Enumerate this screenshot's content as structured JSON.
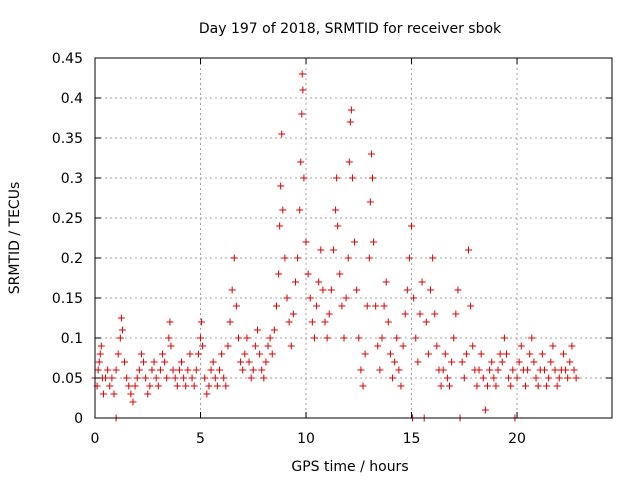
{
  "chart_data": {
    "type": "scatter",
    "title": "Day 197 of 2018, SRMTID for receiver sbok",
    "xlabel": "GPS time / hours",
    "ylabel": "SRMTID / TECUs",
    "xlim": [
      0,
      24.5
    ],
    "ylim": [
      0,
      0.45
    ],
    "x_ticks": [
      0,
      5,
      10,
      15,
      20
    ],
    "x_tick_labels": [
      "0",
      "5",
      "10",
      "15",
      "20"
    ],
    "y_ticks": [
      0,
      0.05,
      0.1,
      0.15,
      0.2,
      0.25,
      0.3,
      0.35,
      0.4,
      0.45
    ],
    "y_tick_labels": [
      "0",
      "0.05",
      "0.1",
      "0.15",
      "0.2",
      "0.25",
      "0.3",
      "0.35",
      "0.4",
      "0.45"
    ],
    "grid": true,
    "marker": "plus",
    "color": "#e00000",
    "series": [
      {
        "name": "SRMTID",
        "points": [
          [
            0.0,
            0.05
          ],
          [
            0.1,
            0.04
          ],
          [
            0.15,
            0.06
          ],
          [
            0.2,
            0.07
          ],
          [
            0.25,
            0.08
          ],
          [
            0.3,
            0.09
          ],
          [
            0.35,
            0.05
          ],
          [
            0.4,
            0.03
          ],
          [
            0.5,
            0.05
          ],
          [
            0.6,
            0.06
          ],
          [
            0.7,
            0.04
          ],
          [
            0.8,
            0.05
          ],
          [
            0.9,
            0.03
          ],
          [
            1.0,
            0.0
          ],
          [
            1.0,
            0.06
          ],
          [
            1.1,
            0.08
          ],
          [
            1.2,
            0.1
          ],
          [
            1.25,
            0.125
          ],
          [
            1.3,
            0.11
          ],
          [
            1.4,
            0.07
          ],
          [
            1.5,
            0.05
          ],
          [
            1.6,
            0.04
          ],
          [
            1.7,
            0.03
          ],
          [
            1.8,
            0.02
          ],
          [
            1.9,
            0.04
          ],
          [
            2.0,
            0.05
          ],
          [
            2.1,
            0.06
          ],
          [
            2.2,
            0.08
          ],
          [
            2.3,
            0.07
          ],
          [
            2.4,
            0.05
          ],
          [
            2.5,
            0.03
          ],
          [
            2.6,
            0.04
          ],
          [
            2.7,
            0.06
          ],
          [
            2.8,
            0.07
          ],
          [
            2.9,
            0.05
          ],
          [
            3.0,
            0.04
          ],
          [
            3.1,
            0.06
          ],
          [
            3.2,
            0.08
          ],
          [
            3.3,
            0.07
          ],
          [
            3.4,
            0.05
          ],
          [
            3.5,
            0.1
          ],
          [
            3.55,
            0.12
          ],
          [
            3.6,
            0.09
          ],
          [
            3.7,
            0.06
          ],
          [
            3.8,
            0.05
          ],
          [
            3.9,
            0.04
          ],
          [
            4.0,
            0.06
          ],
          [
            4.1,
            0.07
          ],
          [
            4.2,
            0.05
          ],
          [
            4.3,
            0.04
          ],
          [
            4.4,
            0.06
          ],
          [
            4.5,
            0.08
          ],
          [
            4.6,
            0.05
          ],
          [
            4.7,
            0.04
          ],
          [
            4.8,
            0.06
          ],
          [
            4.9,
            0.08
          ],
          [
            5.0,
            0.1
          ],
          [
            5.05,
            0.12
          ],
          [
            5.1,
            0.09
          ],
          [
            5.2,
            0.05
          ],
          [
            5.3,
            0.03
          ],
          [
            5.4,
            0.04
          ],
          [
            5.5,
            0.06
          ],
          [
            5.6,
            0.07
          ],
          [
            5.7,
            0.05
          ],
          [
            5.8,
            0.04
          ],
          [
            5.9,
            0.06
          ],
          [
            6.0,
            0.08
          ],
          [
            6.1,
            0.05
          ],
          [
            6.2,
            0.04
          ],
          [
            6.3,
            0.09
          ],
          [
            6.4,
            0.12
          ],
          [
            6.5,
            0.16
          ],
          [
            6.6,
            0.2
          ],
          [
            6.7,
            0.14
          ],
          [
            6.8,
            0.1
          ],
          [
            6.9,
            0.07
          ],
          [
            7.0,
            0.06
          ],
          [
            7.1,
            0.08
          ],
          [
            7.2,
            0.1
          ],
          [
            7.3,
            0.07
          ],
          [
            7.4,
            0.05
          ],
          [
            7.5,
            0.06
          ],
          [
            7.6,
            0.09
          ],
          [
            7.7,
            0.11
          ],
          [
            7.8,
            0.08
          ],
          [
            7.9,
            0.06
          ],
          [
            8.0,
            0.05
          ],
          [
            8.1,
            0.07
          ],
          [
            8.2,
            0.09
          ],
          [
            8.3,
            0.1
          ],
          [
            8.4,
            0.08
          ],
          [
            8.5,
            0.11
          ],
          [
            8.6,
            0.14
          ],
          [
            8.7,
            0.18
          ],
          [
            8.75,
            0.24
          ],
          [
            8.8,
            0.29
          ],
          [
            8.85,
            0.355
          ],
          [
            8.9,
            0.26
          ],
          [
            9.0,
            0.2
          ],
          [
            9.1,
            0.15
          ],
          [
            9.2,
            0.12
          ],
          [
            9.3,
            0.09
          ],
          [
            9.4,
            0.13
          ],
          [
            9.5,
            0.17
          ],
          [
            9.6,
            0.2
          ],
          [
            9.7,
            0.26
          ],
          [
            9.75,
            0.32
          ],
          [
            9.8,
            0.38
          ],
          [
            9.82,
            0.43
          ],
          [
            9.85,
            0.41
          ],
          [
            9.9,
            0.3
          ],
          [
            10.0,
            0.22
          ],
          [
            10.1,
            0.18
          ],
          [
            10.2,
            0.15
          ],
          [
            10.3,
            0.12
          ],
          [
            10.4,
            0.1
          ],
          [
            10.5,
            0.14
          ],
          [
            10.6,
            0.17
          ],
          [
            10.7,
            0.21
          ],
          [
            10.8,
            0.16
          ],
          [
            10.9,
            0.12
          ],
          [
            11.0,
            0.1
          ],
          [
            11.1,
            0.13
          ],
          [
            11.2,
            0.16
          ],
          [
            11.3,
            0.21
          ],
          [
            11.4,
            0.26
          ],
          [
            11.45,
            0.3
          ],
          [
            11.5,
            0.24
          ],
          [
            11.6,
            0.18
          ],
          [
            11.7,
            0.14
          ],
          [
            11.8,
            0.1
          ],
          [
            11.9,
            0.15
          ],
          [
            12.0,
            0.2
          ],
          [
            12.05,
            0.32
          ],
          [
            12.1,
            0.37
          ],
          [
            12.15,
            0.385
          ],
          [
            12.2,
            0.3
          ],
          [
            12.3,
            0.22
          ],
          [
            12.4,
            0.16
          ],
          [
            12.5,
            0.1
          ],
          [
            12.6,
            0.06
          ],
          [
            12.7,
            0.04
          ],
          [
            12.8,
            0.08
          ],
          [
            12.9,
            0.14
          ],
          [
            13.0,
            0.2
          ],
          [
            13.05,
            0.27
          ],
          [
            13.1,
            0.33
          ],
          [
            13.15,
            0.3
          ],
          [
            13.2,
            0.22
          ],
          [
            13.3,
            0.14
          ],
          [
            13.4,
            0.09
          ],
          [
            13.5,
            0.06
          ],
          [
            13.6,
            0.1
          ],
          [
            13.7,
            0.14
          ],
          [
            13.8,
            0.17
          ],
          [
            13.9,
            0.12
          ],
          [
            14.0,
            0.08
          ],
          [
            14.1,
            0.05
          ],
          [
            14.2,
            0.07
          ],
          [
            14.3,
            0.1
          ],
          [
            14.4,
            0.06
          ],
          [
            14.5,
            0.04
          ],
          [
            14.6,
            0.09
          ],
          [
            14.7,
            0.13
          ],
          [
            14.8,
            0.16
          ],
          [
            14.9,
            0.2
          ],
          [
            15.0,
            0.24
          ],
          [
            15.05,
            0.0
          ],
          [
            15.1,
            0.15
          ],
          [
            15.2,
            0.1
          ],
          [
            15.3,
            0.07
          ],
          [
            15.4,
            0.13
          ],
          [
            15.5,
            0.17
          ],
          [
            15.6,
            0.0
          ],
          [
            15.7,
            0.12
          ],
          [
            15.8,
            0.08
          ],
          [
            15.9,
            0.16
          ],
          [
            16.0,
            0.2
          ],
          [
            16.1,
            0.13
          ],
          [
            16.2,
            0.09
          ],
          [
            16.3,
            0.06
          ],
          [
            16.4,
            0.04
          ],
          [
            16.5,
            0.06
          ],
          [
            16.6,
            0.08
          ],
          [
            16.7,
            0.05
          ],
          [
            16.8,
            0.04
          ],
          [
            16.9,
            0.07
          ],
          [
            17.0,
            0.1
          ],
          [
            17.1,
            0.13
          ],
          [
            17.2,
            0.16
          ],
          [
            17.3,
            0.0
          ],
          [
            17.4,
            0.07
          ],
          [
            17.5,
            0.05
          ],
          [
            17.6,
            0.08
          ],
          [
            17.7,
            0.21
          ],
          [
            17.8,
            0.14
          ],
          [
            17.9,
            0.09
          ],
          [
            18.0,
            0.06
          ],
          [
            18.1,
            0.04
          ],
          [
            18.2,
            0.06
          ],
          [
            18.3,
            0.08
          ],
          [
            18.4,
            0.05
          ],
          [
            18.5,
            0.01
          ],
          [
            18.6,
            0.04
          ],
          [
            18.7,
            0.06
          ],
          [
            18.8,
            0.07
          ],
          [
            18.9,
            0.05
          ],
          [
            19.0,
            0.04
          ],
          [
            19.1,
            0.06
          ],
          [
            19.2,
            0.08
          ],
          [
            19.3,
            0.07
          ],
          [
            19.4,
            0.1
          ],
          [
            19.5,
            0.08
          ],
          [
            19.6,
            0.05
          ],
          [
            19.7,
            0.04
          ],
          [
            19.8,
            0.06
          ],
          [
            19.9,
            0.0
          ],
          [
            20.0,
            0.05
          ],
          [
            20.1,
            0.07
          ],
          [
            20.2,
            0.09
          ],
          [
            20.3,
            0.06
          ],
          [
            20.4,
            0.04
          ],
          [
            20.5,
            0.06
          ],
          [
            20.6,
            0.08
          ],
          [
            20.7,
            0.1
          ],
          [
            20.8,
            0.07
          ],
          [
            20.9,
            0.05
          ],
          [
            21.0,
            0.04
          ],
          [
            21.1,
            0.06
          ],
          [
            21.2,
            0.08
          ],
          [
            21.3,
            0.06
          ],
          [
            21.4,
            0.04
          ],
          [
            21.5,
            0.05
          ],
          [
            21.6,
            0.07
          ],
          [
            21.7,
            0.09
          ],
          [
            21.8,
            0.06
          ],
          [
            21.9,
            0.04
          ],
          [
            22.0,
            0.05
          ],
          [
            22.1,
            0.06
          ],
          [
            22.2,
            0.08
          ],
          [
            22.3,
            0.06
          ],
          [
            22.4,
            0.05
          ],
          [
            22.5,
            0.07
          ],
          [
            22.6,
            0.09
          ],
          [
            22.7,
            0.06
          ],
          [
            22.8,
            0.05
          ]
        ]
      }
    ]
  }
}
